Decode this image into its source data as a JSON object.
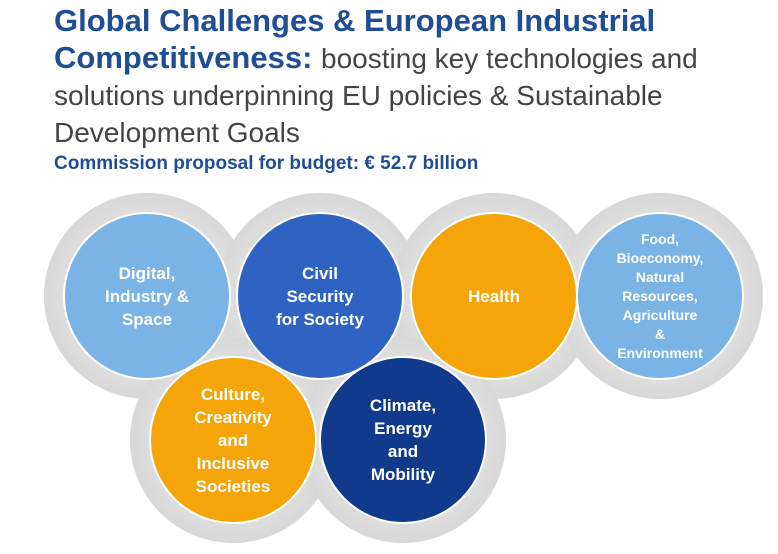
{
  "header": {
    "title_line1": "Global Challenges & European Industrial",
    "title_line2": "Competitiveness:",
    "subtitle": "boosting key technologies and solutions underpinning EU policies & Sustainable Development Goals",
    "budget": "Commission proposal for budget: € 52.7 billion"
  },
  "clusters": [
    {
      "label": "Digital,\nIndustry &\nSpace",
      "color": "#7ab3e5"
    },
    {
      "label": "Civil\nSecurity\nfor Society",
      "color": "#2f63c3"
    },
    {
      "label": "Health",
      "color": "#f5a50a"
    },
    {
      "label": "Food,\nBioeconomy,\nNatural\nResources,\nAgriculture\n&\nEnvironment",
      "color": "#7ab3e5"
    },
    {
      "label": "Culture,\nCreativity\nand\nInclusive\nSocieties",
      "color": "#f5a50a"
    },
    {
      "label": "Climate,\nEnergy\nand\nMobility",
      "color": "#113a8c"
    }
  ]
}
